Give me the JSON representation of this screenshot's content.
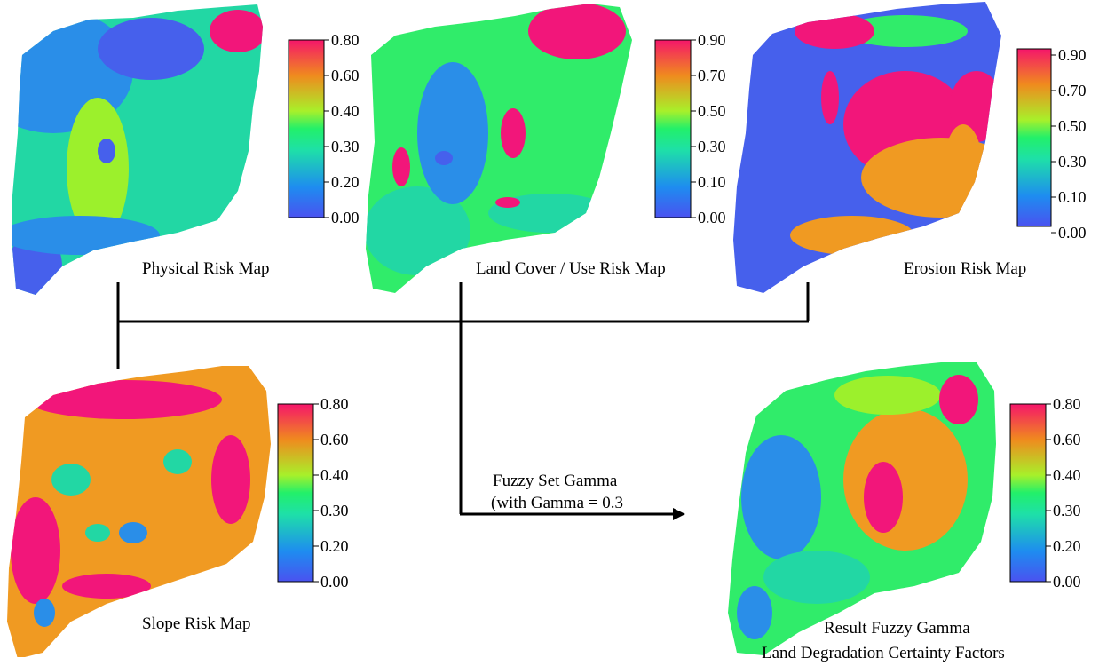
{
  "colors": {
    "stops": [
      "#4a52f0",
      "#1e8cf0",
      "#1ee0a8",
      "#22f06a",
      "#a8f02a",
      "#f08a1e",
      "#f5166a"
    ],
    "map_palette": {
      "blue": "#4660ec",
      "dodger": "#2a8ee8",
      "teal": "#22d7a4",
      "green": "#30ec6a",
      "lime": "#9cf02c",
      "orange": "#f09a22",
      "pink": "#f2167a"
    }
  },
  "maps": [
    {
      "id": "physical",
      "caption": "Physical Risk Map",
      "colorbar_ticks": [
        "0.80",
        "0.60",
        "0.40",
        "0.30",
        "0.20",
        "0.00"
      ],
      "base_color": "teal",
      "patches": [
        "dodger",
        "blue",
        "lime",
        "pink",
        "blue"
      ]
    },
    {
      "id": "landcover",
      "caption": "Land Cover / Use Risk Map",
      "colorbar_ticks": [
        "0.90",
        "0.70",
        "0.50",
        "0.30",
        "0.10",
        "0.00"
      ],
      "base_color": "green",
      "patches": [
        "teal",
        "dodger",
        "pink",
        "pink",
        "blue"
      ]
    },
    {
      "id": "erosion",
      "caption": "Erosion Risk Map",
      "colorbar_ticks": [
        "0.90",
        "0.70",
        "0.50",
        "0.30",
        "0.10",
        "0.00"
      ],
      "base_color": "blue",
      "patches": [
        "pink",
        "orange",
        "green",
        "pink",
        "orange"
      ]
    },
    {
      "id": "slope",
      "caption": "Slope Risk Map",
      "colorbar_ticks": [
        "0.80",
        "0.60",
        "0.40",
        "0.30",
        "0.20",
        "0.00"
      ],
      "base_color": "orange",
      "patches": [
        "pink",
        "teal",
        "pink",
        "dodger",
        "pink"
      ]
    },
    {
      "id": "result",
      "caption_lines": [
        "Result Fuzzy Gamma",
        "Land Degradation Certainty  Factors"
      ],
      "colorbar_ticks": [
        "0.80",
        "0.60",
        "0.40",
        "0.30",
        "0.20",
        "0.00"
      ],
      "base_color": "green",
      "patches": [
        "dodger",
        "orange",
        "pink",
        "teal",
        "lime"
      ]
    }
  ],
  "operation": {
    "line1": "Fuzzy Set Gamma",
    "line2": "(with Gamma = 0.3"
  }
}
